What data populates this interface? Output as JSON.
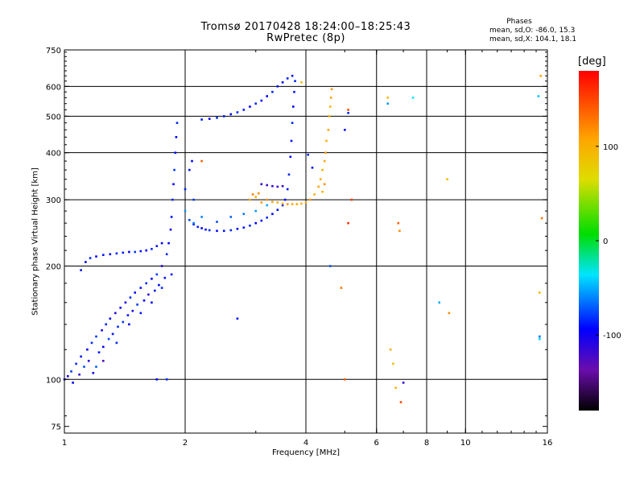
{
  "title_line1": "Tromsø 20170428 18:24:00–18:25:43",
  "title_line2": "RwPretec (8p)",
  "stats": {
    "title": "Phases",
    "o_line": "mean, sd,O: -86.0, 15.3",
    "x_line": "mean, sd,X: 104.1, 18.1"
  },
  "colorbar": {
    "unit": "[deg]",
    "range": [
      -180,
      180
    ],
    "ticks": [
      {
        "value": 100,
        "label": "100"
      },
      {
        "value": 0,
        "label": "0"
      },
      {
        "value": -100,
        "label": "-100"
      }
    ]
  },
  "chart_data": {
    "type": "scatter",
    "title": "Tromsø 20170428 18:24:00–18:25:43",
    "subtitle": "RwPretec (8p)",
    "xlabel": "Frequency [MHz]",
    "ylabel": "Stationary phase Virtual Height [km]",
    "xscale": "log",
    "yscale": "log",
    "xlim": [
      1,
      16
    ],
    "ylim": [
      72,
      750
    ],
    "xticks": [
      {
        "value": 1,
        "label": "1"
      },
      {
        "value": 2,
        "label": "2"
      },
      {
        "value": 4,
        "label": "4"
      },
      {
        "value": 6,
        "label": "6"
      },
      {
        "value": 8,
        "label": "8"
      },
      {
        "value": 10,
        "label": "10"
      },
      {
        "value": 16,
        "label": "16"
      }
    ],
    "yticks": [
      {
        "value": 75,
        "label": "75"
      },
      {
        "value": 100,
        "label": "100"
      },
      {
        "value": 200,
        "label": "200"
      },
      {
        "value": 300,
        "label": "300"
      },
      {
        "value": 400,
        "label": "400"
      },
      {
        "value": 500,
        "label": "500"
      },
      {
        "value": 600,
        "label": "600"
      },
      {
        "value": 750,
        "label": "750"
      }
    ],
    "grid_x": [
      2,
      4,
      6,
      8,
      10
    ],
    "grid_y": [
      100,
      200,
      300,
      400,
      500,
      600
    ],
    "color_variable": "phase [deg]",
    "series": [
      {
        "name": "O",
        "phase": -86,
        "points": [
          [
            1.0,
            100,
            -95
          ],
          [
            1.02,
            102,
            -110
          ],
          [
            1.04,
            105,
            -85
          ],
          [
            1.05,
            98,
            -100
          ],
          [
            1.07,
            110,
            -90
          ],
          [
            1.09,
            103,
            -120
          ],
          [
            1.1,
            115,
            -95
          ],
          [
            1.12,
            108,
            -80
          ],
          [
            1.14,
            120,
            -100
          ],
          [
            1.15,
            112,
            -115
          ],
          [
            1.17,
            125,
            -90
          ],
          [
            1.18,
            104,
            -105
          ],
          [
            1.2,
            130,
            -85
          ],
          [
            1.22,
            118,
            -95
          ],
          [
            1.24,
            135,
            -110
          ],
          [
            1.25,
            122,
            -100
          ],
          [
            1.27,
            140,
            -90
          ],
          [
            1.29,
            128,
            -80
          ],
          [
            1.3,
            145,
            -100
          ],
          [
            1.32,
            132,
            -95
          ],
          [
            1.34,
            150,
            -115
          ],
          [
            1.36,
            138,
            -90
          ],
          [
            1.38,
            155,
            -100
          ],
          [
            1.4,
            142,
            -85
          ],
          [
            1.42,
            160,
            -105
          ],
          [
            1.44,
            148,
            -95
          ],
          [
            1.46,
            165,
            -90
          ],
          [
            1.48,
            152,
            -110
          ],
          [
            1.5,
            170,
            -100
          ],
          [
            1.52,
            158,
            -85
          ],
          [
            1.55,
            175,
            -95
          ],
          [
            1.58,
            162,
            -100
          ],
          [
            1.6,
            180,
            -90
          ],
          [
            1.62,
            168,
            -115
          ],
          [
            1.65,
            185,
            -100
          ],
          [
            1.68,
            172,
            -95
          ],
          [
            1.7,
            190,
            -85
          ],
          [
            1.72,
            178,
            -100
          ],
          [
            1.75,
            200,
            -110
          ],
          [
            1.78,
            186,
            -95
          ],
          [
            1.8,
            215,
            -90
          ],
          [
            1.82,
            230,
            -100
          ],
          [
            1.84,
            250,
            -105
          ],
          [
            1.85,
            270,
            -95
          ],
          [
            1.86,
            300,
            -90
          ],
          [
            1.87,
            330,
            -100
          ],
          [
            1.88,
            360,
            -85
          ],
          [
            1.89,
            400,
            -95
          ],
          [
            1.9,
            440,
            -100
          ],
          [
            1.91,
            480,
            -90
          ],
          [
            1.2,
            108,
            -75
          ],
          [
            1.25,
            112,
            -130
          ],
          [
            1.35,
            125,
            -90
          ],
          [
            1.45,
            140,
            -100
          ],
          [
            1.55,
            150,
            -95
          ],
          [
            1.65,
            160,
            -100
          ],
          [
            1.75,
            175,
            -90
          ],
          [
            1.85,
            190,
            -95
          ],
          [
            1.1,
            195,
            -95
          ],
          [
            1.13,
            205,
            -100
          ],
          [
            1.16,
            210,
            -90
          ],
          [
            1.2,
            212,
            -105
          ],
          [
            1.25,
            214,
            -95
          ],
          [
            1.3,
            215,
            -100
          ],
          [
            1.35,
            216,
            -90
          ],
          [
            1.4,
            217,
            -95
          ],
          [
            1.45,
            218,
            -100
          ],
          [
            1.5,
            218,
            -85
          ],
          [
            1.55,
            219,
            -95
          ],
          [
            1.6,
            220,
            -100
          ],
          [
            1.65,
            222,
            -90
          ],
          [
            1.7,
            226,
            -95
          ],
          [
            1.75,
            230,
            -100
          ],
          [
            2.0,
            280,
            -60
          ],
          [
            2.05,
            265,
            -80
          ],
          [
            2.1,
            258,
            -95
          ],
          [
            2.15,
            254,
            -90
          ],
          [
            2.2,
            252,
            -100
          ],
          [
            2.25,
            250,
            -95
          ],
          [
            2.3,
            249,
            -90
          ],
          [
            2.4,
            248,
            -100
          ],
          [
            2.5,
            248,
            -95
          ],
          [
            2.6,
            249,
            -90
          ],
          [
            2.7,
            251,
            -100
          ],
          [
            2.8,
            253,
            -95
          ],
          [
            2.9,
            256,
            -90
          ],
          [
            3.0,
            260,
            -100
          ],
          [
            3.1,
            264,
            -95
          ],
          [
            3.2,
            269,
            -90
          ],
          [
            3.3,
            275,
            -100
          ],
          [
            3.4,
            282,
            -95
          ],
          [
            3.5,
            290,
            -90
          ],
          [
            3.55,
            300,
            -100
          ],
          [
            3.6,
            320,
            -95
          ],
          [
            3.63,
            350,
            -90
          ],
          [
            3.66,
            390,
            -100
          ],
          [
            3.68,
            430,
            -95
          ],
          [
            3.7,
            480,
            -90
          ],
          [
            3.72,
            530,
            -100
          ],
          [
            3.74,
            580,
            -95
          ],
          [
            3.76,
            620,
            -90
          ],
          [
            2.2,
            490,
            -95
          ],
          [
            2.3,
            492,
            -100
          ],
          [
            2.4,
            495,
            -90
          ],
          [
            2.5,
            500,
            -95
          ],
          [
            2.6,
            506,
            -100
          ],
          [
            2.7,
            512,
            -90
          ],
          [
            2.8,
            520,
            -95
          ],
          [
            2.9,
            530,
            -100
          ],
          [
            3.0,
            540,
            -90
          ],
          [
            3.1,
            550,
            -95
          ],
          [
            3.2,
            565,
            -100
          ],
          [
            3.3,
            580,
            -90
          ],
          [
            3.4,
            600,
            -95
          ],
          [
            3.5,
            615,
            -100
          ],
          [
            3.6,
            630,
            -90
          ],
          [
            3.7,
            640,
            -95
          ],
          [
            2.1,
            260,
            -70
          ],
          [
            2.2,
            270,
            -65
          ],
          [
            2.4,
            262,
            -80
          ],
          [
            2.6,
            270,
            -75
          ],
          [
            2.8,
            275,
            -70
          ],
          [
            3.0,
            280,
            -60
          ],
          [
            3.2,
            290,
            -55
          ],
          [
            2.0,
            320,
            -90
          ],
          [
            2.05,
            360,
            -95
          ],
          [
            2.08,
            380,
            -100
          ],
          [
            2.1,
            300,
            -85
          ],
          [
            3.1,
            330,
            -120
          ],
          [
            3.2,
            328,
            -125
          ],
          [
            3.3,
            326,
            -120
          ],
          [
            3.4,
            325,
            -125
          ],
          [
            3.5,
            326,
            -120
          ],
          [
            2.7,
            145,
            -95
          ],
          [
            4.05,
            395,
            -90
          ],
          [
            4.15,
            365,
            -95
          ],
          [
            4.6,
            200,
            -80
          ],
          [
            5.0,
            460,
            -100
          ],
          [
            5.1,
            510,
            -90
          ],
          [
            6.4,
            540,
            -60
          ],
          [
            7.4,
            560,
            -40
          ],
          [
            8.6,
            160,
            -55
          ],
          [
            15.2,
            565,
            -50
          ],
          [
            15.3,
            128,
            -45
          ],
          [
            15.3,
            130,
            -70
          ],
          [
            7.0,
            98,
            -120
          ],
          [
            1.7,
            100,
            -100
          ],
          [
            1.8,
            100,
            -90
          ]
        ]
      },
      {
        "name": "X",
        "phase": 104,
        "points": [
          [
            2.9,
            300,
            110
          ],
          [
            3.0,
            305,
            100
          ],
          [
            3.1,
            295,
            115
          ],
          [
            3.2,
            300,
            120
          ],
          [
            3.3,
            296,
            110
          ],
          [
            3.4,
            295,
            105
          ],
          [
            3.5,
            293,
            100
          ],
          [
            3.6,
            292,
            115
          ],
          [
            3.7,
            292,
            110
          ],
          [
            3.8,
            292,
            105
          ],
          [
            3.9,
            293,
            100
          ],
          [
            4.0,
            295,
            110
          ],
          [
            4.1,
            300,
            115
          ],
          [
            4.2,
            310,
            100
          ],
          [
            4.3,
            325,
            110
          ],
          [
            4.35,
            340,
            105
          ],
          [
            4.4,
            360,
            100
          ],
          [
            4.45,
            380,
            110
          ],
          [
            4.48,
            400,
            115
          ],
          [
            4.5,
            430,
            100
          ],
          [
            4.55,
            460,
            110
          ],
          [
            4.58,
            500,
            105
          ],
          [
            4.6,
            530,
            100
          ],
          [
            4.62,
            560,
            110
          ],
          [
            4.64,
            590,
            115
          ],
          [
            4.4,
            315,
            95
          ],
          [
            4.45,
            330,
            120
          ],
          [
            2.95,
            310,
            125
          ],
          [
            3.05,
            312,
            118
          ],
          [
            3.9,
            615,
            90
          ],
          [
            5.2,
            300,
            155
          ],
          [
            5.1,
            260,
            160
          ],
          [
            5.1,
            520,
            150
          ],
          [
            4.9,
            175,
            130
          ],
          [
            5.0,
            100,
            140
          ],
          [
            6.4,
            560,
            95
          ],
          [
            6.5,
            120,
            100
          ],
          [
            6.6,
            110,
            85
          ],
          [
            6.7,
            95,
            100
          ],
          [
            6.8,
            260,
            140
          ],
          [
            6.85,
            248,
            120
          ],
          [
            6.9,
            87,
            150
          ],
          [
            9.0,
            340,
            85
          ],
          [
            9.1,
            150,
            120
          ],
          [
            15.4,
            640,
            110
          ],
          [
            15.5,
            268,
            130
          ],
          [
            15.3,
            170,
            90
          ],
          [
            2.2,
            380,
            140
          ]
        ]
      }
    ]
  }
}
